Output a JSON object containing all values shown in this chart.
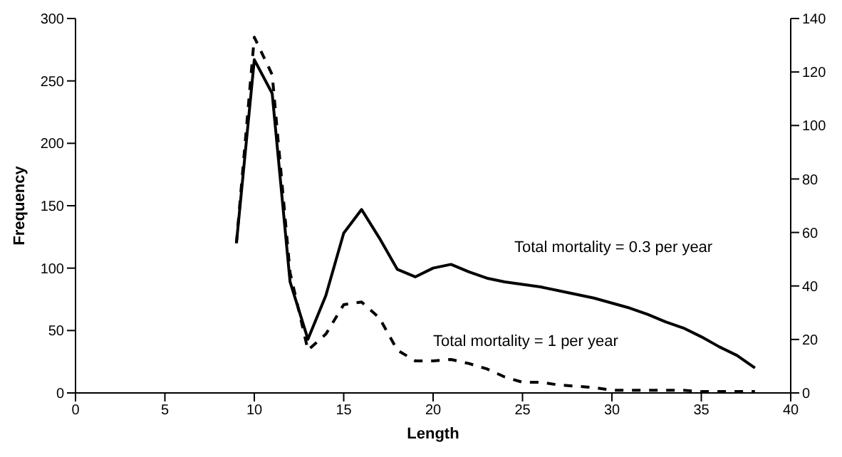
{
  "chart_data": {
    "type": "line",
    "xlabel": "Length",
    "ylabel": "Frequency",
    "x": [
      9,
      10,
      11,
      12,
      13,
      14,
      15,
      16,
      17,
      18,
      19,
      20,
      21,
      22,
      23,
      24,
      25,
      26,
      27,
      28,
      29,
      30,
      31,
      32,
      33,
      34,
      35,
      36,
      37,
      38
    ],
    "series": [
      {
        "color": "#000000",
        "line_style": "solid",
        "values": [
          120,
          267,
          240,
          89,
          43,
          78,
          128,
          147,
          124,
          99,
          93,
          100,
          103,
          97,
          92,
          89,
          87,
          85,
          82,
          79,
          76,
          72,
          68,
          63,
          57,
          52,
          45,
          37,
          30,
          20
        ]
      },
      {
        "color": "#000000",
        "line_style": "dashed",
        "axis": "y2",
        "values": [
          56,
          133,
          119,
          45,
          16,
          22,
          33,
          34,
          28,
          16,
          12,
          12,
          12.5,
          11,
          9,
          6,
          4,
          4,
          3,
          2.5,
          2,
          1,
          1,
          1,
          1,
          1,
          0.5,
          0.5,
          0.5,
          0.5
        ]
      }
    ],
    "xlim": [
      0,
      40
    ],
    "xticks": [
      0,
      5,
      10,
      15,
      20,
      25,
      30,
      35,
      40
    ],
    "ylim": [
      0,
      300
    ],
    "yticks": [
      0,
      50,
      100,
      150,
      200,
      250,
      300
    ],
    "y2lim": [
      0,
      140
    ],
    "y2ticks": [
      0,
      20,
      40,
      60,
      80,
      100,
      120,
      140
    ],
    "grid": false,
    "legend": false,
    "marker": "none",
    "annotations": [
      "Total mortality = 0.3 per year",
      "Total mortality = 1 per year"
    ]
  }
}
